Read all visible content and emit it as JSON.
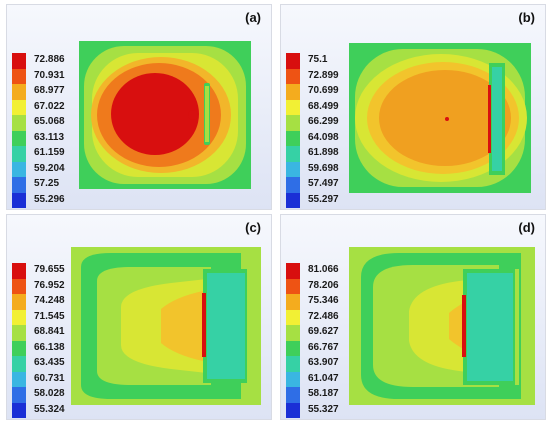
{
  "panels": [
    {
      "label": "(a)",
      "legend": [
        "72.886",
        "70.931",
        "68.977",
        "67.022",
        "65.068",
        "63.113",
        "61.159",
        "59.204",
        "57.25",
        "55.296"
      ]
    },
    {
      "label": "(b)",
      "legend": [
        "75.1",
        "72.899",
        "70.699",
        "68.499",
        "66.299",
        "64.098",
        "61.898",
        "59.698",
        "57.497",
        "55.297"
      ]
    },
    {
      "label": "(c)",
      "legend": [
        "79.655",
        "76.952",
        "74.248",
        "71.545",
        "68.841",
        "66.138",
        "63.435",
        "60.731",
        "58.028",
        "55.324"
      ]
    },
    {
      "label": "(d)",
      "legend": [
        "81.066",
        "78.206",
        "75.346",
        "72.486",
        "69.627",
        "66.767",
        "63.907",
        "61.047",
        "58.187",
        "55.327"
      ]
    }
  ],
  "colors": {
    "scale": [
      "#d80f0f",
      "#ee5314",
      "#f4ac1e",
      "#f2f034",
      "#a6e043",
      "#3fcf5a",
      "#36d1a5",
      "#3ab6e2",
      "#2f6ee6",
      "#1a2fd6"
    ]
  }
}
